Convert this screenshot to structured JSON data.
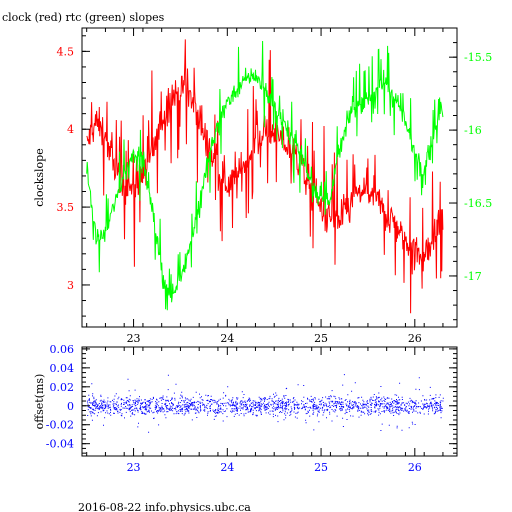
{
  "colors": {
    "clock": "#ff0000",
    "rtc": "#00ff00",
    "offset": "#0000ff",
    "axes": "#000000"
  },
  "footer": "2016-08-22 info.physics.ubc.ca",
  "chart_data": [
    {
      "type": "line",
      "title": "clock (red) rtc (green) slopes",
      "xlabel": "",
      "ylabel": "clockslope",
      "xlim": [
        22.45,
        26.45
      ],
      "ylim": [
        2.73,
        4.65
      ],
      "y2lim": [
        -17.35,
        -15.3
      ],
      "x_ticks": [
        23,
        24,
        25,
        26
      ],
      "y_ticks": [
        3,
        3.5,
        4,
        4.5
      ],
      "y2_ticks": [
        -15.5,
        -16,
        -16.5,
        -17
      ],
      "series": [
        {
          "name": "clock",
          "axis": "left",
          "x": [
            22.5,
            22.6,
            22.7,
            22.8,
            22.9,
            23.0,
            23.1,
            23.2,
            23.3,
            23.4,
            23.5,
            23.6,
            23.7,
            23.8,
            23.9,
            24.0,
            24.1,
            24.2,
            24.3,
            24.4,
            24.5,
            24.6,
            24.7,
            24.8,
            24.9,
            25.0,
            25.1,
            25.2,
            25.3,
            25.4,
            25.5,
            25.6,
            25.7,
            25.8,
            25.9,
            26.0,
            26.1,
            26.2,
            26.3
          ],
          "y": [
            3.9,
            4.05,
            3.95,
            3.75,
            3.65,
            3.62,
            3.7,
            3.85,
            4.05,
            4.2,
            4.25,
            4.2,
            4.05,
            3.88,
            3.72,
            3.65,
            3.68,
            3.8,
            3.92,
            4.0,
            3.98,
            3.92,
            3.85,
            3.75,
            3.62,
            3.5,
            3.42,
            3.42,
            3.5,
            3.58,
            3.6,
            3.55,
            3.45,
            3.38,
            3.3,
            3.22,
            3.18,
            3.3,
            3.45
          ]
        },
        {
          "name": "rtc",
          "axis": "right",
          "x": [
            22.5,
            22.6,
            22.7,
            22.8,
            22.9,
            23.0,
            23.1,
            23.2,
            23.3,
            23.4,
            23.5,
            23.6,
            23.7,
            23.8,
            23.9,
            24.0,
            24.1,
            24.2,
            24.3,
            24.4,
            24.5,
            24.6,
            24.7,
            24.8,
            24.9,
            25.0,
            25.1,
            25.2,
            25.3,
            25.4,
            25.5,
            25.6,
            25.7,
            25.8,
            25.9,
            26.0,
            26.1,
            26.2,
            26.3
          ],
          "y": [
            -16.25,
            -16.75,
            -16.7,
            -16.5,
            -16.3,
            -16.15,
            -16.2,
            -16.55,
            -16.95,
            -17.15,
            -17.0,
            -16.8,
            -16.5,
            -16.2,
            -15.95,
            -15.8,
            -15.72,
            -15.65,
            -15.62,
            -15.72,
            -15.85,
            -15.95,
            -16.05,
            -16.2,
            -16.35,
            -16.5,
            -16.45,
            -16.15,
            -15.9,
            -15.82,
            -15.78,
            -15.72,
            -15.68,
            -15.78,
            -15.95,
            -16.15,
            -16.25,
            -16.05,
            -15.8
          ]
        }
      ]
    },
    {
      "type": "scatter",
      "title": "",
      "xlabel": "",
      "ylabel": "offset(ms)",
      "xlim": [
        22.45,
        26.45
      ],
      "ylim": [
        -0.053,
        0.062
      ],
      "x_ticks": [
        23,
        24,
        25,
        26
      ],
      "y_ticks": [
        0.06,
        0.04,
        0.02,
        0,
        -0.02,
        -0.04
      ],
      "x_range": [
        22.5,
        26.3
      ],
      "y_center": 0,
      "y_spread": 0.012,
      "point_count": 3000
    }
  ]
}
